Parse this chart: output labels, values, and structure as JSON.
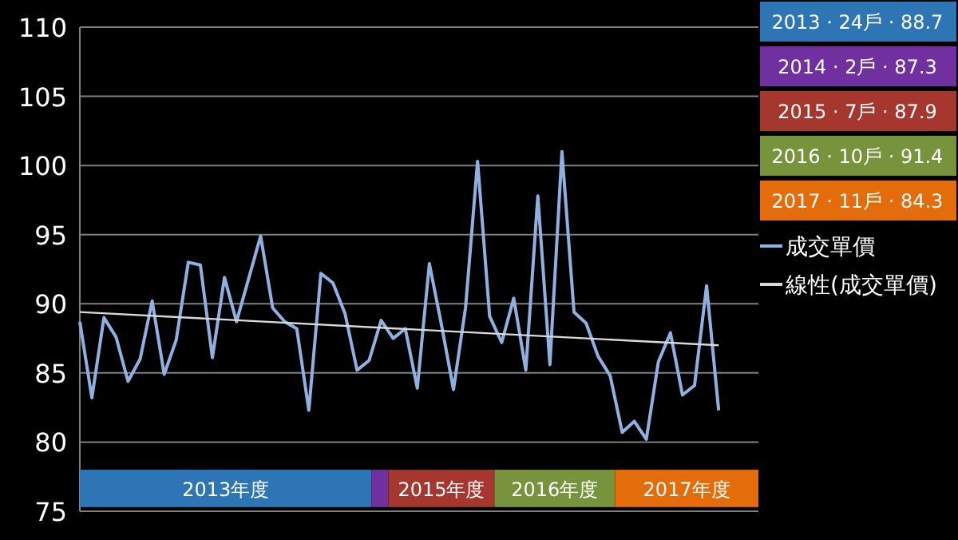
{
  "chart_data": {
    "type": "line",
    "categories": [
      null,
      null,
      null,
      null,
      null,
      null,
      null,
      null,
      null,
      null,
      null,
      null,
      null,
      null,
      null,
      null,
      null,
      null,
      null,
      null,
      null,
      null,
      null,
      null,
      null,
      null,
      null,
      null,
      null,
      null,
      null,
      null,
      null,
      null,
      null,
      null,
      null,
      null,
      null,
      null,
      null,
      null,
      null,
      null,
      null,
      null,
      null,
      null,
      null,
      null,
      null,
      null,
      null,
      null
    ],
    "series": [
      {
        "name": "成交單價",
        "color": "#8fb0e0",
        "values": [
          88.7,
          83.2,
          89.0,
          87.6,
          84.4,
          86.0,
          90.2,
          84.9,
          87.4,
          93.0,
          92.8,
          86.1,
          91.9,
          88.7,
          91.8,
          94.9,
          89.7,
          88.7,
          88.2,
          82.3,
          92.2,
          91.5,
          89.3,
          85.2,
          85.9,
          88.8,
          87.5,
          88.2,
          83.9,
          92.9,
          88.5,
          83.8,
          89.7,
          100.3,
          89.1,
          87.2,
          90.4,
          85.2,
          97.8,
          85.6,
          101.0,
          89.4,
          88.6,
          86.2,
          84.8,
          80.7,
          81.5,
          80.2,
          85.8,
          87.9,
          83.4,
          84.1,
          91.3,
          82.3
        ]
      },
      {
        "name": "線性(成交單價)",
        "type": "line",
        "color": "#d9d9d9",
        "values": [
          89.4,
          null,
          null,
          null,
          null,
          null,
          null,
          null,
          null,
          null,
          null,
          null,
          null,
          null,
          null,
          null,
          null,
          null,
          null,
          null,
          null,
          null,
          null,
          null,
          null,
          null,
          null,
          null,
          null,
          null,
          null,
          null,
          null,
          null,
          null,
          null,
          null,
          null,
          null,
          null,
          null,
          null,
          null,
          null,
          null,
          null,
          null,
          null,
          null,
          null,
          null,
          null,
          null,
          87.0
        ]
      }
    ],
    "ylim": [
      75,
      110
    ],
    "yticks": [
      75,
      80,
      85,
      90,
      95,
      100,
      105,
      110
    ],
    "grid": "y",
    "legend": "right",
    "marker": "none",
    "line_style": "solid",
    "annotations": [
      "2013 · 24戶 · 88.7",
      "2014 · 2戶 · 87.3",
      "2015 · 7戶 · 87.9",
      "2016 · 10戶 · 91.4",
      "2017 · 11戶 · 84.3",
      "2013年度",
      "2015年度",
      "2016年度",
      "2017年度"
    ]
  }
}
